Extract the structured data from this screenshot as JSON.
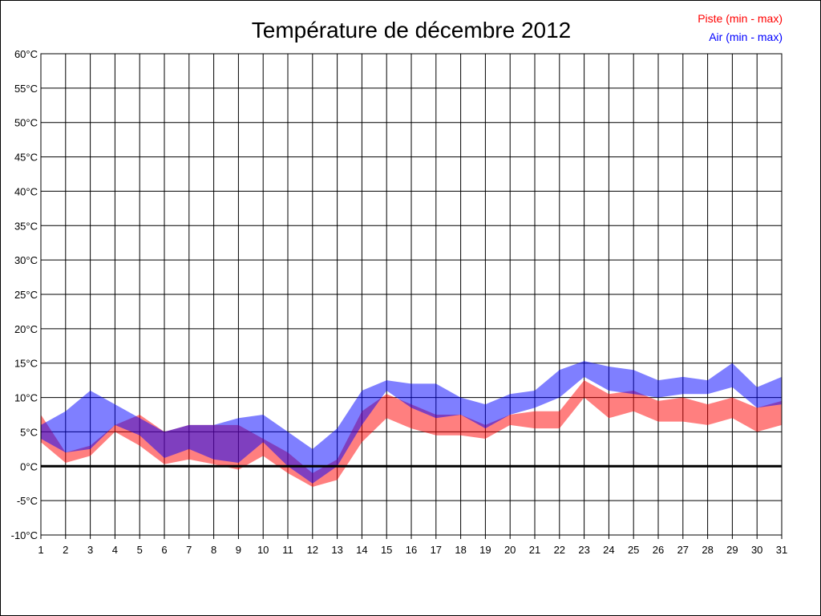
{
  "chart_data": {
    "type": "area",
    "title": "Température de décembre 2012",
    "categories": [
      "1",
      "2",
      "3",
      "4",
      "5",
      "6",
      "7",
      "8",
      "9",
      "10",
      "11",
      "12",
      "13",
      "14",
      "15",
      "16",
      "17",
      "18",
      "19",
      "20",
      "21",
      "22",
      "23",
      "24",
      "25",
      "26",
      "27",
      "28",
      "29",
      "30",
      "31"
    ],
    "y_ticks": [
      "-10°C",
      "-5°C",
      "0°C",
      "5°C",
      "10°C",
      "15°C",
      "20°C",
      "25°C",
      "30°C",
      "35°C",
      "40°C",
      "45°C",
      "50°C",
      "55°C",
      "60°C"
    ],
    "ylim": [
      -10,
      60
    ],
    "grid": true,
    "legend_position": "top-right",
    "series": [
      {
        "name": "Piste (min - max)",
        "color": "#ff0000",
        "min": [
          3.5,
          0.5,
          1.5,
          5,
          3,
          0.3,
          1,
          0.3,
          -0.5,
          1.5,
          -1,
          -3,
          -2,
          3.5,
          7,
          5.5,
          4.5,
          4.5,
          4,
          6,
          5.5,
          5.5,
          10,
          7,
          8,
          6.5,
          6.5,
          6,
          7,
          5,
          6
        ],
        "max": [
          7.5,
          2,
          3,
          6,
          7.5,
          5,
          6,
          6,
          6,
          4,
          2,
          -1,
          1,
          8,
          10.5,
          9,
          7.5,
          7.5,
          6,
          7.5,
          8,
          8,
          12.5,
          10.5,
          11,
          9.5,
          10,
          9,
          10,
          8.5,
          9.5
        ]
      },
      {
        "name": "Air (min - max)",
        "color": "#0000ff",
        "min": [
          4,
          2,
          2.5,
          6,
          4.5,
          1.2,
          2.5,
          1,
          0.5,
          3.5,
          0,
          -2.5,
          0,
          6,
          11,
          8.5,
          7,
          7.5,
          5.5,
          7.5,
          8.5,
          10,
          13,
          11,
          10.5,
          10,
          10.5,
          10.5,
          11.5,
          8.5,
          9
        ],
        "max": [
          6,
          8,
          11,
          9,
          7,
          5,
          6,
          6,
          7,
          7.5,
          5,
          2.5,
          5.5,
          11,
          12.5,
          12,
          12,
          10,
          9,
          10.5,
          11,
          14,
          15.3,
          14.5,
          14,
          12.5,
          13,
          12.5,
          15,
          11.5,
          13
        ]
      }
    ],
    "reference_line": {
      "y": 0,
      "color": "#000000"
    }
  }
}
